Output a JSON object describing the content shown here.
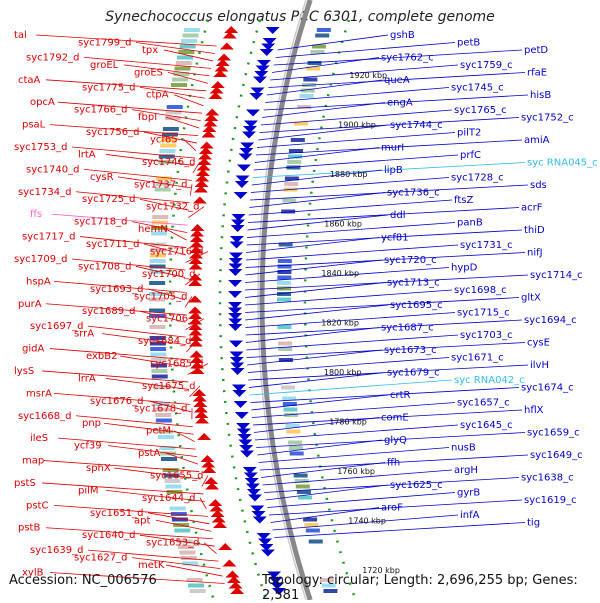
{
  "title": "Synechococcus elongatus PCC 6301, complete genome",
  "accession": "Accession: NC_006576",
  "topology": "Topology: circular; Length: 2,696,255 bp; Genes: 2,581",
  "colors": {
    "forward": "#dd0000",
    "reverse": "#0000cc",
    "rna": "#ff66cc",
    "rna_rev": "#33bbee",
    "backbone": "#888888",
    "dots": "#229922"
  },
  "kbp_ticks": [
    "1920 kbp",
    "1900 kbp",
    "1880 kbp",
    "1860 kbp",
    "1840 kbp",
    "1820 kbp",
    "1800 kbp",
    "1780 kbp",
    "1760 kbp",
    "1740 kbp",
    "1720 kbp"
  ],
  "left_labels": [
    {
      "t": "tal",
      "c": "f"
    },
    {
      "t": "syc1799_d",
      "c": "f"
    },
    {
      "t": "tpx",
      "c": "f"
    },
    {
      "t": "syc1792_d",
      "c": "f"
    },
    {
      "t": "groEL",
      "c": "f"
    },
    {
      "t": "groES",
      "c": "f"
    },
    {
      "t": "ctaA",
      "c": "f"
    },
    {
      "t": "syc1775_d",
      "c": "f"
    },
    {
      "t": "ctpA",
      "c": "f"
    },
    {
      "t": "opcA",
      "c": "f"
    },
    {
      "t": "syc1766_d",
      "c": "f"
    },
    {
      "t": "fbpI",
      "c": "f"
    },
    {
      "t": "psaL",
      "c": "f"
    },
    {
      "t": "syc1756_d",
      "c": "f"
    },
    {
      "t": "ycf65",
      "c": "f"
    },
    {
      "t": "syc1753_d",
      "c": "f"
    },
    {
      "t": "lrtA",
      "c": "f"
    },
    {
      "t": "syc1746_d",
      "c": "f"
    },
    {
      "t": "syc1740_d",
      "c": "f"
    },
    {
      "t": "cysR",
      "c": "f"
    },
    {
      "t": "syc1737_d",
      "c": "f"
    },
    {
      "t": "syc1734_d",
      "c": "f"
    },
    {
      "t": "syc1725_d",
      "c": "f"
    },
    {
      "t": "syc1732_d",
      "c": "f"
    },
    {
      "t": "ffs",
      "c": "r"
    },
    {
      "t": "syc1718_d",
      "c": "f"
    },
    {
      "t": "hemN",
      "c": "f"
    },
    {
      "t": "syc1717_d",
      "c": "f"
    },
    {
      "t": "syc1711_d",
      "c": "f"
    },
    {
      "t": "syc1716_d",
      "c": "f"
    },
    {
      "t": "syc1709_d",
      "c": "f"
    },
    {
      "t": "syc1708_d",
      "c": "f"
    },
    {
      "t": "syc1700_d",
      "c": "f"
    },
    {
      "t": "hspA",
      "c": "f"
    },
    {
      "t": "syc1693_d",
      "c": "f"
    },
    {
      "t": "syc1705_d",
      "c": "f"
    },
    {
      "t": "purA",
      "c": "f"
    },
    {
      "t": "syc1689_d",
      "c": "f"
    },
    {
      "t": "syc1706_d",
      "c": "f"
    },
    {
      "t": "syc1697_d",
      "c": "f"
    },
    {
      "t": "srrA",
      "c": "f"
    },
    {
      "t": "syc1684_d",
      "c": "f"
    },
    {
      "t": "gidA",
      "c": "f"
    },
    {
      "t": "exbB2",
      "c": "f"
    },
    {
      "t": "syc1685_d",
      "c": "f"
    },
    {
      "t": "lysS",
      "c": "f"
    },
    {
      "t": "lrrA",
      "c": "f"
    },
    {
      "t": "syc1675_d",
      "c": "f"
    },
    {
      "t": "msrA",
      "c": "f"
    },
    {
      "t": "syc1676_d",
      "c": "f"
    },
    {
      "t": "syc1678_d",
      "c": "f"
    },
    {
      "t": "syc1668_d",
      "c": "f"
    },
    {
      "t": "pnp",
      "c": "f"
    },
    {
      "t": "petM",
      "c": "f"
    },
    {
      "t": "ileS",
      "c": "f"
    },
    {
      "t": "ycf39",
      "c": "f"
    },
    {
      "t": "pstA",
      "c": "f"
    },
    {
      "t": "map",
      "c": "f"
    },
    {
      "t": "sphX",
      "c": "f"
    },
    {
      "t": "syc1655_d",
      "c": "f"
    },
    {
      "t": "pstS",
      "c": "f"
    },
    {
      "t": "pilM",
      "c": "f"
    },
    {
      "t": "syc1644_d",
      "c": "f"
    },
    {
      "t": "pstC",
      "c": "f"
    },
    {
      "t": "syc1651_d",
      "c": "f"
    },
    {
      "t": "apt",
      "c": "f"
    },
    {
      "t": "pstB",
      "c": "f"
    },
    {
      "t": "syc1640_d",
      "c": "f"
    },
    {
      "t": "syc1653_d",
      "c": "f"
    },
    {
      "t": "syc1639_d",
      "c": "f"
    },
    {
      "t": "syc1627_d",
      "c": "f"
    },
    {
      "t": "metK",
      "c": "f"
    },
    {
      "t": "xylB",
      "c": "f"
    }
  ],
  "right_labels": [
    {
      "t": "gshB",
      "c": "b"
    },
    {
      "t": "petB",
      "c": "b"
    },
    {
      "t": "petD",
      "c": "b"
    },
    {
      "t": "syc1762_c",
      "c": "b"
    },
    {
      "t": "syc1759_c",
      "c": "b"
    },
    {
      "t": "rfaE",
      "c": "b"
    },
    {
      "t": "queA",
      "c": "b"
    },
    {
      "t": "syc1745_c",
      "c": "b"
    },
    {
      "t": "hisB",
      "c": "b"
    },
    {
      "t": "engA",
      "c": "b"
    },
    {
      "t": "syc1765_c",
      "c": "b"
    },
    {
      "t": "syc1752_c",
      "c": "b"
    },
    {
      "t": "syc1744_c",
      "c": "b"
    },
    {
      "t": "pilT2",
      "c": "b"
    },
    {
      "t": "amiA",
      "c": "b"
    },
    {
      "t": "murI",
      "c": "b"
    },
    {
      "t": "prfC",
      "c": "b"
    },
    {
      "t": "syc RNA045_c",
      "c": "c"
    },
    {
      "t": "lipB",
      "c": "b"
    },
    {
      "t": "syc1728_c",
      "c": "b"
    },
    {
      "t": "sds",
      "c": "b"
    },
    {
      "t": "syc1736_c",
      "c": "b"
    },
    {
      "t": "ftsZ",
      "c": "b"
    },
    {
      "t": "acrF",
      "c": "b"
    },
    {
      "t": "ddl",
      "c": "b"
    },
    {
      "t": "panB",
      "c": "b"
    },
    {
      "t": "thiD",
      "c": "b"
    },
    {
      "t": "ycf81",
      "c": "b"
    },
    {
      "t": "syc1731_c",
      "c": "b"
    },
    {
      "t": "nifJ",
      "c": "b"
    },
    {
      "t": "syc1720_c",
      "c": "b"
    },
    {
      "t": "hypD",
      "c": "b"
    },
    {
      "t": "syc1714_c",
      "c": "b"
    },
    {
      "t": "syc1713_c",
      "c": "b"
    },
    {
      "t": "syc1698_c",
      "c": "b"
    },
    {
      "t": "gltX",
      "c": "b"
    },
    {
      "t": "syc1695_c",
      "c": "b"
    },
    {
      "t": "syc1715_c",
      "c": "b"
    },
    {
      "t": "syc1694_c",
      "c": "b"
    },
    {
      "t": "syc1687_c",
      "c": "b"
    },
    {
      "t": "syc1703_c",
      "c": "b"
    },
    {
      "t": "cysE",
      "c": "b"
    },
    {
      "t": "syc1673_c",
      "c": "b"
    },
    {
      "t": "syc1671_c",
      "c": "b"
    },
    {
      "t": "ilvH",
      "c": "b"
    },
    {
      "t": "syc1679_c",
      "c": "b"
    },
    {
      "t": "syc RNA042_c",
      "c": "c"
    },
    {
      "t": "syc1674_c",
      "c": "b"
    },
    {
      "t": "crtR",
      "c": "b"
    },
    {
      "t": "syc1657_c",
      "c": "b"
    },
    {
      "t": "hflX",
      "c": "b"
    },
    {
      "t": "comE",
      "c": "b"
    },
    {
      "t": "syc1645_c",
      "c": "b"
    },
    {
      "t": "syc1659_c",
      "c": "b"
    },
    {
      "t": "glyQ",
      "c": "b"
    },
    {
      "t": "nusB",
      "c": "b"
    },
    {
      "t": "syc1649_c",
      "c": "b"
    },
    {
      "t": "ffh",
      "c": "b"
    },
    {
      "t": "argH",
      "c": "b"
    },
    {
      "t": "syc1638_c",
      "c": "b"
    },
    {
      "t": "syc1625_c",
      "c": "b"
    },
    {
      "t": "gyrB",
      "c": "b"
    },
    {
      "t": "syc1619_c",
      "c": "b"
    },
    {
      "t": "aroF",
      "c": "b"
    },
    {
      "t": "infA",
      "c": "b"
    },
    {
      "t": "tig",
      "c": "b"
    }
  ]
}
